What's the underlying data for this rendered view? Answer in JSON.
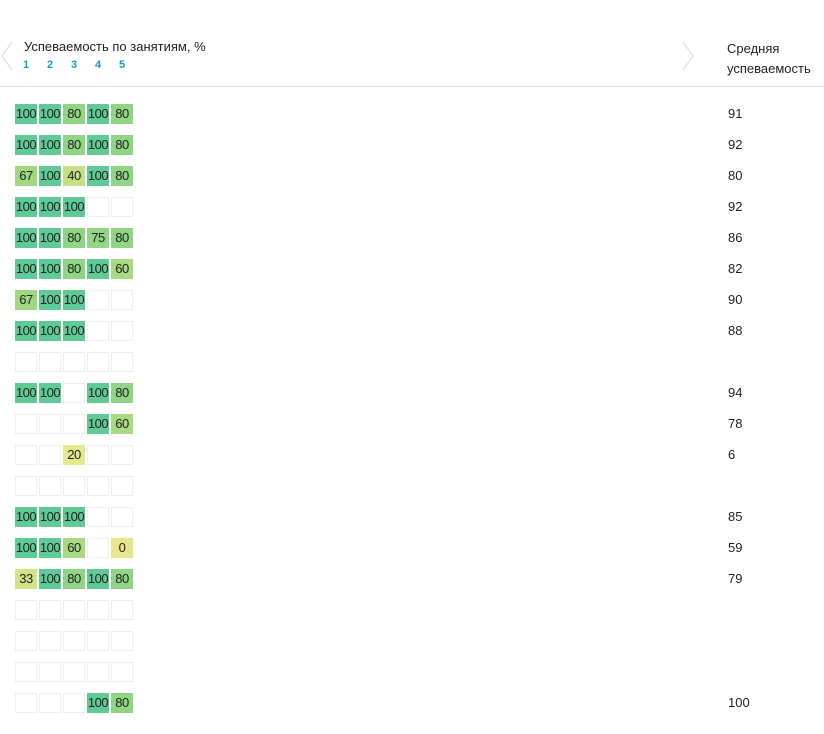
{
  "header": {
    "title": "Успеваемость по занятиям, %",
    "lessons": [
      "1",
      "2",
      "3",
      "4",
      "5"
    ],
    "avg_line1": "Средняя",
    "avg_line2": "успеваемость"
  },
  "colors": {
    "score_100": "#5ecb96",
    "score_80": "#8fd584",
    "score_75": "#93d585",
    "score_67": "#a0d781",
    "score_60": "#a8da80",
    "score_40": "#c6df84",
    "score_33": "#d2e388",
    "score_20": "#e4e98e",
    "score_0": "#e7e68a",
    "empty_border": "#efefef",
    "lesson_link": "#1a9bbd"
  },
  "rows": [
    {
      "cells": [
        "100",
        "100",
        "80",
        "100",
        "80"
      ],
      "avg": "91"
    },
    {
      "cells": [
        "100",
        "100",
        "80",
        "100",
        "80"
      ],
      "avg": "92"
    },
    {
      "cells": [
        "67",
        "100",
        "40",
        "100",
        "80"
      ],
      "avg": "80"
    },
    {
      "cells": [
        "100",
        "100",
        "100",
        "",
        ""
      ],
      "avg": "92"
    },
    {
      "cells": [
        "100",
        "100",
        "80",
        "75",
        "80"
      ],
      "avg": "86"
    },
    {
      "cells": [
        "100",
        "100",
        "80",
        "100",
        "60"
      ],
      "avg": "82"
    },
    {
      "cells": [
        "67",
        "100",
        "100",
        "",
        ""
      ],
      "avg": "90"
    },
    {
      "cells": [
        "100",
        "100",
        "100",
        "",
        ""
      ],
      "avg": "88"
    },
    {
      "cells": [
        "",
        "",
        "",
        "",
        ""
      ],
      "avg": ""
    },
    {
      "cells": [
        "100",
        "100",
        "",
        "100",
        "80"
      ],
      "avg": "94"
    },
    {
      "cells": [
        "",
        "",
        "",
        "100",
        "60"
      ],
      "avg": "78"
    },
    {
      "cells": [
        "",
        "",
        "20",
        "",
        ""
      ],
      "avg": "6"
    },
    {
      "cells": [
        "",
        "",
        "",
        "",
        ""
      ],
      "avg": ""
    },
    {
      "cells": [
        "100",
        "100",
        "100",
        "",
        ""
      ],
      "avg": "85"
    },
    {
      "cells": [
        "100",
        "100",
        "60",
        "",
        "0"
      ],
      "avg": "59"
    },
    {
      "cells": [
        "33",
        "100",
        "80",
        "100",
        "80"
      ],
      "avg": "79"
    },
    {
      "cells": [
        "",
        "",
        "",
        "",
        ""
      ],
      "avg": ""
    },
    {
      "cells": [
        "",
        "",
        "",
        "",
        ""
      ],
      "avg": ""
    },
    {
      "cells": [
        "",
        "",
        "",
        "",
        ""
      ],
      "avg": ""
    },
    {
      "cells": [
        "",
        "",
        "",
        "100",
        "80"
      ],
      "avg": "100"
    }
  ]
}
